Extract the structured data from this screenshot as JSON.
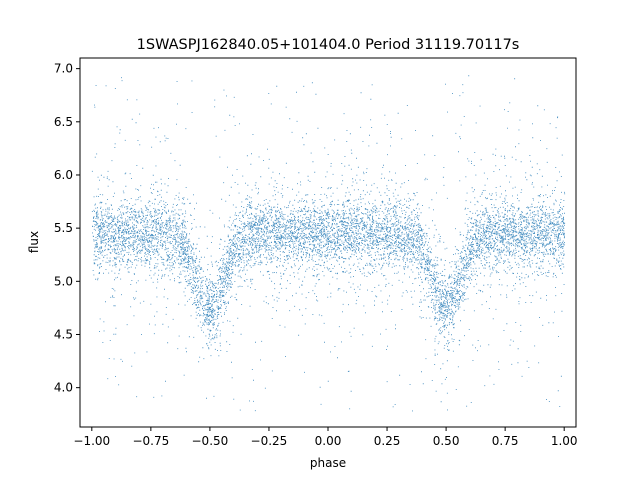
{
  "chart_data": {
    "type": "scatter",
    "title": "1SWASPJ162840.05+101404.0 Period 31119.70117s",
    "xlabel": "phase",
    "ylabel": "flux",
    "xlim": [
      -1.05,
      1.05
    ],
    "ylim": [
      3.63,
      7.1
    ],
    "x_ticks": [
      -1.0,
      -0.75,
      -0.5,
      -0.25,
      0.0,
      0.25,
      0.5,
      0.75,
      1.0
    ],
    "x_tick_labels": [
      "−1.00",
      "−0.75",
      "−0.50",
      "−0.25",
      "0.00",
      "0.25",
      "0.50",
      "0.75",
      "1.00"
    ],
    "y_ticks": [
      4.0,
      4.5,
      5.0,
      5.5,
      6.0,
      6.5,
      7.0
    ],
    "y_tick_labels": [
      "4.0",
      "4.5",
      "5.0",
      "5.5",
      "6.0",
      "6.5",
      "7.0"
    ],
    "grid": false,
    "marker_color": "#1f77b4",
    "light_curve": {
      "baseline_flux": 5.45,
      "baseline_spread": 0.15,
      "eclipses": [
        {
          "phase_center": -0.5,
          "width": 0.06,
          "min_flux": 4.75
        },
        {
          "phase_center": 0.5,
          "width": 0.06,
          "min_flux": 4.75
        }
      ],
      "outlier_flux_range": [
        3.78,
        6.95
      ]
    }
  }
}
